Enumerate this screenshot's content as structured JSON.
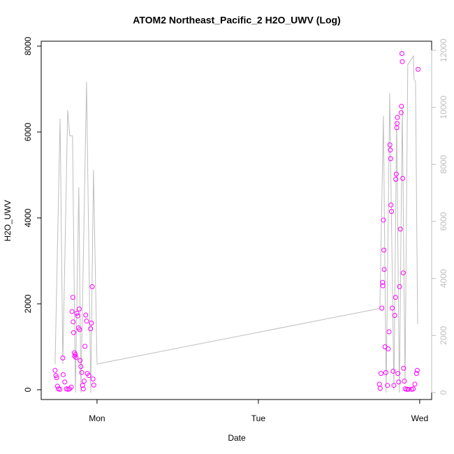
{
  "chart_data": {
    "type": "scatter",
    "title": "ATOM2 Northeast_Pacific_2 H2O_UWV (Log)",
    "x_label": "Date",
    "y_label": "H2O_UWV",
    "xlim": [
      0.654,
      3.074
    ],
    "xticks": [
      {
        "value": 1,
        "label": "Mon"
      },
      {
        "value": 2,
        "label": "Tue"
      },
      {
        "value": 3,
        "label": "Wed"
      }
    ],
    "ylim": [
      -228,
      8114
    ],
    "yticks": [
      0,
      2000,
      4000,
      6000,
      8000
    ],
    "y2lim": [
      -245,
      12319
    ],
    "y2ticks": [
      0,
      2000,
      4000,
      6000,
      8000,
      10000,
      12000
    ],
    "series": [
      {
        "type": "scatter",
        "color": "#ff00ff",
        "x": [
          0.74,
          0.745,
          0.75,
          0.755,
          0.76,
          0.77,
          0.788,
          0.79,
          0.8,
          0.81,
          0.82,
          0.83,
          0.84,
          0.845,
          0.85,
          0.852,
          0.855,
          0.86,
          0.862,
          0.865,
          0.87,
          0.875,
          0.88,
          0.885,
          0.89,
          0.892,
          0.895,
          0.9,
          0.905,
          0.91,
          0.915,
          0.92,
          0.925,
          0.93,
          0.935,
          0.94,
          0.95,
          0.96,
          0.965,
          0.97,
          0.975,
          0.98,
          2.75,
          2.755,
          2.76,
          2.765,
          2.77,
          2.772,
          2.775,
          2.778,
          2.78,
          2.785,
          2.79,
          2.8,
          2.805,
          2.81,
          2.815,
          2.818,
          2.82,
          2.822,
          2.825,
          2.83,
          2.835,
          2.84,
          2.845,
          2.85,
          2.852,
          2.855,
          2.858,
          2.86,
          2.862,
          2.865,
          2.87,
          2.875,
          2.88,
          2.885,
          2.887,
          2.89,
          2.892,
          2.895,
          2.898,
          2.9,
          2.905,
          2.91,
          2.92,
          2.93,
          2.95,
          2.96,
          2.97,
          2.98,
          2.985,
          2.99
        ],
        "values": [
          450,
          330,
          280,
          80,
          20,
          10,
          740,
          350,
          180,
          20,
          10,
          20,
          60,
          1820,
          2150,
          1580,
          1330,
          860,
          780,
          820,
          750,
          1780,
          1720,
          1440,
          1880,
          1400,
          680,
          540,
          400,
          100,
          20,
          200,
          1010,
          1740,
          1600,
          380,
          330,
          1420,
          1550,
          2400,
          250,
          110,
          130,
          30,
          380,
          1900,
          2500,
          2420,
          3950,
          3250,
          2800,
          1000,
          400,
          100,
          950,
          1350,
          5700,
          5580,
          5380,
          4300,
          4150,
          1900,
          430,
          100,
          1730,
          2150,
          4900,
          5020,
          6100,
          6200,
          6340,
          380,
          180,
          2400,
          3740,
          6450,
          6600,
          7830,
          7640,
          4920,
          2720,
          500,
          200,
          20,
          10,
          10,
          10,
          20,
          130,
          380,
          450,
          7460
        ]
      },
      {
        "type": "line",
        "axis": "y2",
        "color": "#bebebe",
        "x": [
          0.74,
          0.771,
          0.788,
          0.818,
          0.831,
          0.848,
          0.866,
          0.887,
          0.9,
          0.935,
          0.961,
          0.978,
          1.0,
          2.753,
          2.775,
          2.792,
          2.814,
          2.84,
          2.857,
          2.874,
          2.892,
          2.909,
          2.926,
          2.961,
          2.965,
          2.974,
          2.987
        ],
        "values": [
          1000,
          9600,
          1000,
          9900,
          9000,
          9000,
          0,
          7200,
          0,
          10900,
          0,
          7800,
          1000,
          2950,
          9700,
          0,
          10500,
          100,
          9500,
          0,
          10000,
          300,
          11500,
          11800,
          11000,
          10900,
          2400
        ]
      }
    ]
  }
}
